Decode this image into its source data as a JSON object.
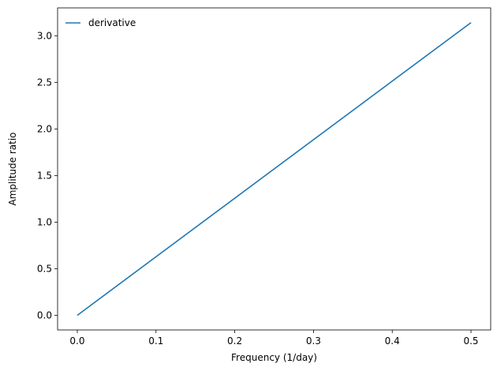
{
  "chart_data": {
    "type": "line",
    "title": "",
    "xlabel": "Frequency (1/day)",
    "ylabel": "Amplitude ratio",
    "xlim": [
      -0.025,
      0.525
    ],
    "ylim": [
      -0.157,
      3.299
    ],
    "xticks": [
      0.0,
      0.1,
      0.2,
      0.3,
      0.4,
      0.5
    ],
    "xtick_labels": [
      "0.0",
      "0.1",
      "0.2",
      "0.3",
      "0.4",
      "0.5"
    ],
    "yticks": [
      0.0,
      0.5,
      1.0,
      1.5,
      2.0,
      2.5,
      3.0
    ],
    "ytick_labels": [
      "0.0",
      "0.5",
      "1.0",
      "1.5",
      "2.0",
      "2.5",
      "3.0"
    ],
    "grid": false,
    "legend": "top-left",
    "series": [
      {
        "name": "derivative",
        "color": "#1f77b4",
        "x": [
          0.0,
          0.5
        ],
        "y": [
          0.0,
          3.1416
        ]
      }
    ]
  }
}
